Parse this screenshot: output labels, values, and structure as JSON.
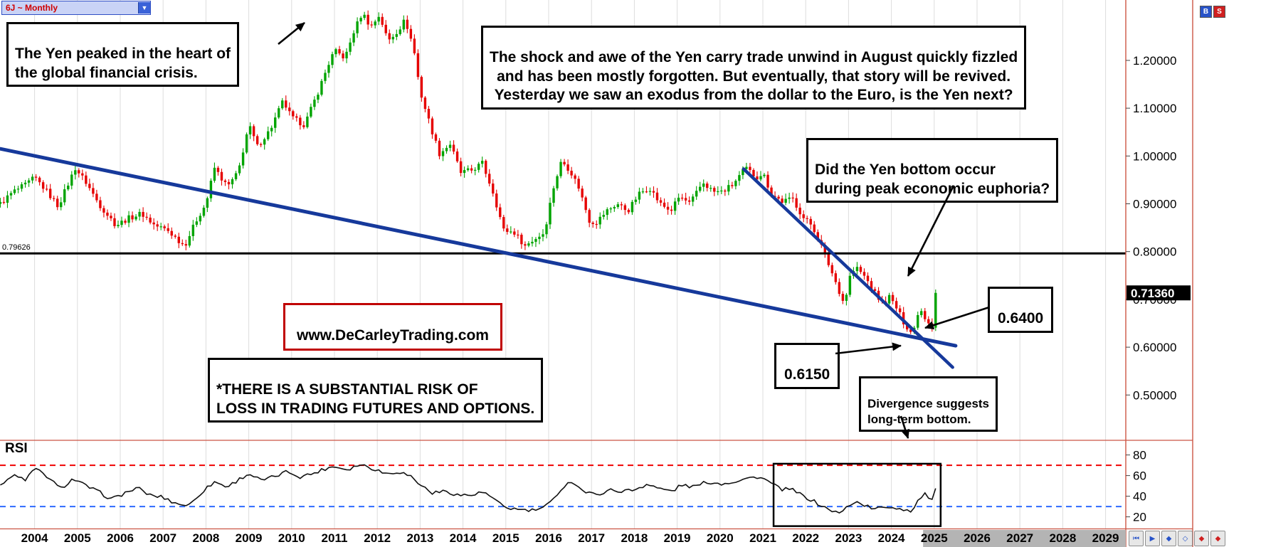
{
  "toolbar": {
    "symbol_selector": "6J ~ Monthly",
    "dropdown_arrow": "▼"
  },
  "trade_buttons": [
    {
      "label": "B",
      "name": "buy-button",
      "color": "#2853c8"
    },
    {
      "label": "S",
      "name": "sell-button",
      "color": "#d02020"
    }
  ],
  "scrollbar_buttons": [
    {
      "glyph": "⏮",
      "name": "scroll-to-start-button",
      "color": "#2853c8"
    },
    {
      "glyph": "▶",
      "name": "scroll-forward-button",
      "color": "#2853c8"
    },
    {
      "glyph": "◆",
      "name": "blue-diamond-button",
      "color": "#2853c8"
    },
    {
      "glyph": "◇",
      "name": "blue-diamond-outline-button",
      "color": "#2853c8"
    },
    {
      "glyph": "◆",
      "name": "red-diamond-button",
      "color": "#d02020"
    },
    {
      "glyph": "◆",
      "name": "red-diamond-button-2",
      "color": "#d02020"
    }
  ],
  "annotations": {
    "peak_note": "The Yen peaked in the heart of\nthe global financial crisis.",
    "carry_trade_note": "The shock and awe of the Yen carry trade unwind in August quickly fizzled\nand has been mostly forgotten. But eventually, that story will be revived.\nYesterday we saw an exodus from the dollar to the Euro, is the Yen next?",
    "bottom_note": "Did the Yen bottom occur\nduring peak economic euphoria?",
    "website": "www.DeCarleyTrading.com",
    "risk_disclaimer": "*THERE IS A SUBSTANTIAL RISK OF\nLOSS IN TRADING FUTURES AND OPTIONS.",
    "level_6400": "0.6400",
    "level_6150": "0.6150",
    "divergence_note": "Divergence suggests\nlong-term bottom."
  },
  "chart_data": [
    {
      "type": "candlestick",
      "name": "Japanese Yen (6J) futures - monthly",
      "up_color": "#00a400",
      "down_color": "#e60000",
      "x_axis": {
        "data_start": 2003.2,
        "data_end": 2025.05,
        "axis_end": 2029.95,
        "future_shade_start": 2024.74,
        "year_labels": [
          "2004",
          "2005",
          "2006",
          "2007",
          "2008",
          "2009",
          "2010",
          "2011",
          "2012",
          "2013",
          "2014",
          "2015",
          "2016",
          "2017",
          "2018",
          "2019",
          "2020",
          "2021",
          "2022",
          "2023",
          "2024",
          "2025",
          "2026",
          "2027",
          "2028",
          "2029"
        ]
      },
      "y_axis": {
        "tick_labels": [
          "1.20000",
          "1.10000",
          "1.00000",
          "0.90000",
          "0.80000",
          "0.70000",
          "0.60000",
          "0.50000"
        ]
      },
      "support_line": {
        "value": 0.79626,
        "label": "0.79626",
        "color": "#000000"
      },
      "last_price": {
        "value": 0.7136,
        "label": "0.71360"
      },
      "trendlines": [
        {
          "name": "long-term-downtrend-line",
          "from": [
            2003.2,
            1.015
          ],
          "to": [
            2025.5,
            0.603
          ],
          "color": "#16399b",
          "width": 5
        },
        {
          "name": "steep-downtrend-line",
          "from": [
            2020.55,
            0.973
          ],
          "to": [
            2025.43,
            0.558
          ],
          "color": "#16399b",
          "width": 4.5
        }
      ],
      "monthly_close_anchors": [
        [
          2003.2,
          0.9
        ],
        [
          2003.5,
          0.925
        ],
        [
          2003.8,
          0.94
        ],
        [
          2004.0,
          0.955
        ],
        [
          2004.25,
          0.93
        ],
        [
          2004.55,
          0.895
        ],
        [
          2004.95,
          0.975
        ],
        [
          2005.2,
          0.945
        ],
        [
          2005.5,
          0.9
        ],
        [
          2005.9,
          0.855
        ],
        [
          2006.2,
          0.87
        ],
        [
          2006.5,
          0.88
        ],
        [
          2006.8,
          0.855
        ],
        [
          2007.1,
          0.845
        ],
        [
          2007.5,
          0.812
        ],
        [
          2007.8,
          0.87
        ],
        [
          2008.0,
          0.9
        ],
        [
          2008.2,
          0.975
        ],
        [
          2008.5,
          0.935
        ],
        [
          2008.75,
          0.965
        ],
        [
          2009.0,
          1.065
        ],
        [
          2009.2,
          1.02
        ],
        [
          2009.5,
          1.055
        ],
        [
          2009.8,
          1.115
        ],
        [
          2010.0,
          1.08
        ],
        [
          2010.3,
          1.065
        ],
        [
          2010.6,
          1.13
        ],
        [
          2010.85,
          1.19
        ],
        [
          2011.0,
          1.22
        ],
        [
          2011.25,
          1.205
        ],
        [
          2011.45,
          1.26
        ],
        [
          2011.65,
          1.3
        ],
        [
          2011.85,
          1.27
        ],
        [
          2012.05,
          1.295
        ],
        [
          2012.25,
          1.24
        ],
        [
          2012.5,
          1.265
        ],
        [
          2012.65,
          1.285
        ],
        [
          2012.85,
          1.225
        ],
        [
          2013.0,
          1.135
        ],
        [
          2013.25,
          1.06
        ],
        [
          2013.45,
          1.005
        ],
        [
          2013.7,
          1.025
        ],
        [
          2013.95,
          0.965
        ],
        [
          2014.2,
          0.97
        ],
        [
          2014.45,
          0.985
        ],
        [
          2014.7,
          0.925
        ],
        [
          2014.95,
          0.845
        ],
        [
          2015.2,
          0.84
        ],
        [
          2015.45,
          0.812
        ],
        [
          2015.65,
          0.825
        ],
        [
          2015.9,
          0.84
        ],
        [
          2016.1,
          0.93
        ],
        [
          2016.3,
          0.99
        ],
        [
          2016.5,
          0.97
        ],
        [
          2016.7,
          0.935
        ],
        [
          2016.95,
          0.865
        ],
        [
          2017.1,
          0.86
        ],
        [
          2017.35,
          0.885
        ],
        [
          2017.6,
          0.9
        ],
        [
          2017.85,
          0.885
        ],
        [
          2018.1,
          0.92
        ],
        [
          2018.35,
          0.935
        ],
        [
          2018.6,
          0.9
        ],
        [
          2018.85,
          0.885
        ],
        [
          2019.05,
          0.915
        ],
        [
          2019.3,
          0.9
        ],
        [
          2019.6,
          0.945
        ],
        [
          2019.85,
          0.925
        ],
        [
          2020.05,
          0.925
        ],
        [
          2020.3,
          0.94
        ],
        [
          2020.6,
          0.975
        ],
        [
          2020.85,
          0.955
        ],
        [
          2021.0,
          0.965
        ],
        [
          2021.2,
          0.92
        ],
        [
          2021.45,
          0.905
        ],
        [
          2021.7,
          0.91
        ],
        [
          2021.95,
          0.87
        ],
        [
          2022.15,
          0.855
        ],
        [
          2022.35,
          0.815
        ],
        [
          2022.55,
          0.77
        ],
        [
          2022.75,
          0.725
        ],
        [
          2022.9,
          0.69
        ],
        [
          2023.05,
          0.755
        ],
        [
          2023.2,
          0.765
        ],
        [
          2023.4,
          0.745
        ],
        [
          2023.6,
          0.715
        ],
        [
          2023.8,
          0.69
        ],
        [
          2023.95,
          0.705
        ],
        [
          2024.1,
          0.685
        ],
        [
          2024.3,
          0.65
        ],
        [
          2024.5,
          0.627
        ],
        [
          2024.65,
          0.685
        ],
        [
          2024.8,
          0.66
        ],
        [
          2024.95,
          0.645
        ],
        [
          2025.05,
          0.7136
        ]
      ]
    },
    {
      "type": "line",
      "name": "RSI indicator",
      "label": "RSI",
      "line_color": "#111111",
      "overbought_level": 70,
      "oversold_level": 30,
      "overbought_color": "#f00000",
      "oversold_color": "#2e6bff",
      "y_axis": {
        "tick_labels": [
          "80",
          "60",
          "40",
          "20"
        ]
      },
      "highlight_box": {
        "x_from": 2021.25,
        "x_to": 2025.15,
        "value_from": 11,
        "value_to": 71.5
      },
      "anchors": [
        [
          2003.2,
          52
        ],
        [
          2003.5,
          60
        ],
        [
          2003.8,
          56
        ],
        [
          2004.0,
          67
        ],
        [
          2004.3,
          59
        ],
        [
          2004.6,
          47
        ],
        [
          2004.9,
          57
        ],
        [
          2005.2,
          50
        ],
        [
          2005.5,
          44
        ],
        [
          2005.8,
          37
        ],
        [
          2006.1,
          43
        ],
        [
          2006.4,
          48
        ],
        [
          2006.7,
          41
        ],
        [
          2007.0,
          39
        ],
        [
          2007.3,
          33
        ],
        [
          2007.6,
          31
        ],
        [
          2007.9,
          44
        ],
        [
          2008.2,
          54
        ],
        [
          2008.5,
          49
        ],
        [
          2008.8,
          57
        ],
        [
          2009.0,
          62
        ],
        [
          2009.3,
          55
        ],
        [
          2009.6,
          59
        ],
        [
          2009.9,
          64
        ],
        [
          2010.2,
          59
        ],
        [
          2010.5,
          62
        ],
        [
          2010.8,
          67
        ],
        [
          2011.0,
          69
        ],
        [
          2011.3,
          66
        ],
        [
          2011.6,
          71
        ],
        [
          2011.9,
          67
        ],
        [
          2012.2,
          62
        ],
        [
          2012.5,
          64
        ],
        [
          2012.8,
          59
        ],
        [
          2013.0,
          51
        ],
        [
          2013.3,
          43
        ],
        [
          2013.6,
          45
        ],
        [
          2013.9,
          41
        ],
        [
          2014.2,
          41
        ],
        [
          2014.5,
          44
        ],
        [
          2014.8,
          34
        ],
        [
          2015.0,
          29
        ],
        [
          2015.3,
          27
        ],
        [
          2015.6,
          26
        ],
        [
          2015.9,
          29
        ],
        [
          2016.1,
          36
        ],
        [
          2016.3,
          48
        ],
        [
          2016.55,
          55
        ],
        [
          2016.8,
          45
        ],
        [
          2017.1,
          41
        ],
        [
          2017.4,
          46
        ],
        [
          2017.7,
          45
        ],
        [
          2018.0,
          46
        ],
        [
          2018.3,
          52
        ],
        [
          2018.6,
          47
        ],
        [
          2018.9,
          45
        ],
        [
          2019.1,
          51
        ],
        [
          2019.4,
          49
        ],
        [
          2019.7,
          54
        ],
        [
          2020.0,
          52
        ],
        [
          2020.3,
          54
        ],
        [
          2020.6,
          57
        ],
        [
          2020.9,
          59
        ],
        [
          2021.1,
          55
        ],
        [
          2021.4,
          47
        ],
        [
          2021.7,
          46
        ],
        [
          2021.95,
          40
        ],
        [
          2022.15,
          36
        ],
        [
          2022.35,
          31
        ],
        [
          2022.55,
          27
        ],
        [
          2022.8,
          23
        ],
        [
          2023.0,
          31
        ],
        [
          2023.15,
          35
        ],
        [
          2023.4,
          31
        ],
        [
          2023.6,
          27
        ],
        [
          2023.85,
          30
        ],
        [
          2024.1,
          29
        ],
        [
          2024.3,
          27
        ],
        [
          2024.5,
          26
        ],
        [
          2024.65,
          38
        ],
        [
          2024.8,
          42
        ],
        [
          2024.95,
          36
        ],
        [
          2025.05,
          48
        ]
      ]
    }
  ]
}
